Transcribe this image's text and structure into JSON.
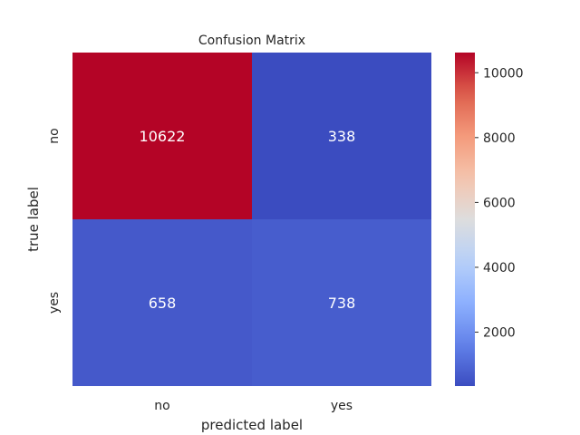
{
  "chart_data": {
    "type": "heatmap",
    "title": "Confusion Matrix",
    "xlabel": "predicted label",
    "ylabel": "true label",
    "x_categories": [
      "no",
      "yes"
    ],
    "y_categories": [
      "no",
      "yes"
    ],
    "values": [
      [
        10622,
        338
      ],
      [
        658,
        738
      ]
    ],
    "colormap": "coolwarm",
    "colorbar": {
      "vmin": 338,
      "vmax": 10622,
      "ticks": [
        2000,
        4000,
        6000,
        8000,
        10000
      ],
      "tick_labels": [
        "2000",
        "4000",
        "6000",
        "8000",
        "10000"
      ]
    },
    "annotation_color": "#ffffff",
    "grid": false
  }
}
